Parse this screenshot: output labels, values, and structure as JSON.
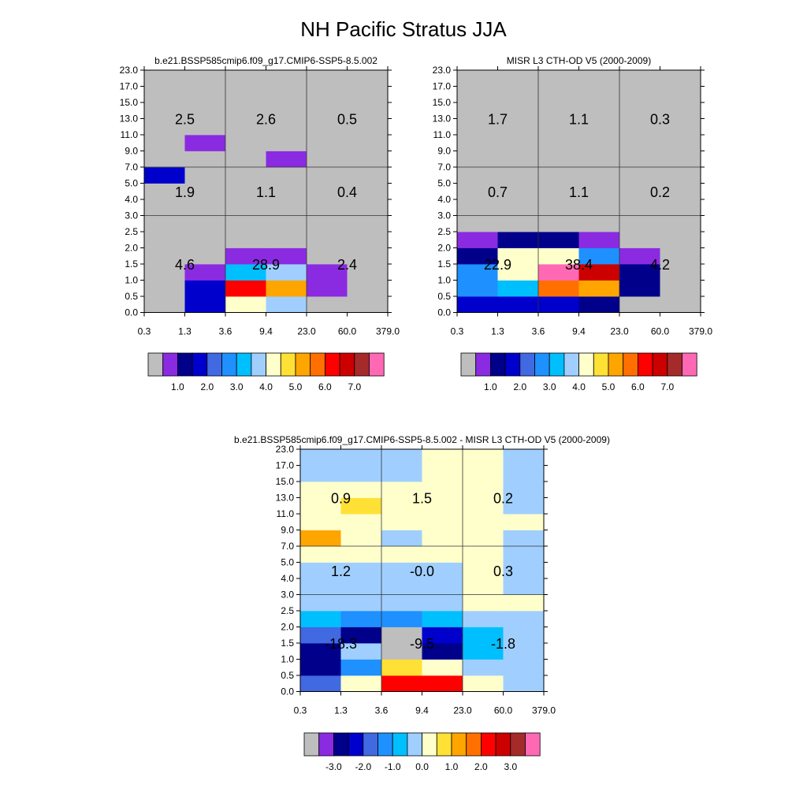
{
  "main_title": "NH Pacific Stratus JJA",
  "palette": {
    "missing": "#bebebe",
    "colors": [
      "#8a2be2",
      "#00008b",
      "#0000cd",
      "#4169e1",
      "#1e90ff",
      "#00bfff",
      "#a0cfff",
      "#ffffcc",
      "#ffe135",
      "#ffa500",
      "#ff7000",
      "#ff0000",
      "#cd0000",
      "#a52a2a",
      "#ff69b4"
    ],
    "note_values": "color index 0-14; -1 = gray (missing/zero)"
  },
  "chart_data": [
    {
      "type": "heatmap",
      "title": "b.e21.BSSP585cmip6.f09_g17.CMIP6-SSP5-8.5.002",
      "x_tick_labels": [
        "0.3",
        "1.3",
        "3.6",
        "9.4",
        "23.0",
        "60.0",
        "379.0"
      ],
      "y_tick_labels": [
        "0.0",
        "0.5",
        "1.0",
        "1.5",
        "2.0",
        "2.5",
        "3.0",
        "4.0",
        "5.0",
        "7.0",
        "9.0",
        "11.0",
        "13.0",
        "15.0",
        "17.0",
        "23.0"
      ],
      "cell_color_index": [
        [
          -1,
          2,
          7,
          6,
          -1,
          -1
        ],
        [
          -1,
          2,
          11,
          9,
          0,
          -1
        ],
        [
          -1,
          0,
          5,
          6,
          0,
          -1
        ],
        [
          -1,
          -1,
          0,
          0,
          -1,
          -1
        ],
        [
          -1,
          -1,
          -1,
          -1,
          -1,
          -1
        ],
        [
          -1,
          -1,
          -1,
          -1,
          -1,
          -1
        ],
        [
          -1,
          -1,
          -1,
          -1,
          -1,
          -1
        ],
        [
          -1,
          -1,
          -1,
          -1,
          -1,
          -1
        ],
        [
          2,
          -1,
          -1,
          -1,
          -1,
          -1
        ],
        [
          -1,
          -1,
          -1,
          0,
          -1,
          -1
        ],
        [
          -1,
          0,
          -1,
          -1,
          -1,
          -1
        ],
        [
          -1,
          -1,
          -1,
          -1,
          -1,
          -1
        ],
        [
          -1,
          -1,
          -1,
          -1,
          -1,
          -1
        ],
        [
          -1,
          -1,
          -1,
          -1,
          -1,
          -1
        ],
        [
          -1,
          -1,
          -1,
          -1,
          -1,
          -1
        ]
      ],
      "block_values": [
        {
          "xcenter": 1,
          "yband": "low",
          "label": "4.6"
        },
        {
          "xcenter": 3,
          "yband": "low",
          "label": "28.9"
        },
        {
          "xcenter": 5,
          "yband": "low",
          "label": "2.4"
        },
        {
          "xcenter": 1,
          "yband": "mid",
          "label": "1.9"
        },
        {
          "xcenter": 3,
          "yband": "mid",
          "label": "1.1"
        },
        {
          "xcenter": 5,
          "yband": "mid",
          "label": "0.4"
        },
        {
          "xcenter": 1,
          "yband": "high",
          "label": "2.5"
        },
        {
          "xcenter": 3,
          "yband": "high",
          "label": "2.6"
        },
        {
          "xcenter": 5,
          "yband": "high",
          "label": "0.5"
        }
      ],
      "colorbar_labels": [
        "1.0",
        "2.0",
        "3.0",
        "4.0",
        "5.0",
        "6.0",
        "7.0"
      ]
    },
    {
      "type": "heatmap",
      "title": "MISR L3 CTH-OD V5 (2000-2009)",
      "x_tick_labels": [
        "0.3",
        "1.3",
        "3.6",
        "9.4",
        "23.0",
        "60.0",
        "379.0"
      ],
      "y_tick_labels": [
        "0.0",
        "0.5",
        "1.0",
        "1.5",
        "2.0",
        "2.5",
        "3.0",
        "4.0",
        "5.0",
        "7.0",
        "9.0",
        "11.0",
        "13.0",
        "15.0",
        "17.0",
        "23.0"
      ],
      "cell_color_index": [
        [
          2,
          2,
          2,
          1,
          -1,
          -1
        ],
        [
          4,
          5,
          10,
          9,
          1,
          -1
        ],
        [
          4,
          7,
          14,
          12,
          1,
          -1
        ],
        [
          1,
          7,
          7,
          4,
          0,
          -1
        ],
        [
          0,
          1,
          1,
          0,
          -1,
          -1
        ],
        [
          -1,
          -1,
          -1,
          -1,
          -1,
          -1
        ],
        [
          -1,
          -1,
          -1,
          -1,
          -1,
          -1
        ],
        [
          -1,
          -1,
          -1,
          -1,
          -1,
          -1
        ],
        [
          -1,
          -1,
          -1,
          -1,
          -1,
          -1
        ],
        [
          -1,
          -1,
          -1,
          -1,
          -1,
          -1
        ],
        [
          -1,
          -1,
          -1,
          -1,
          -1,
          -1
        ],
        [
          -1,
          -1,
          -1,
          -1,
          -1,
          -1
        ],
        [
          -1,
          -1,
          -1,
          -1,
          -1,
          -1
        ],
        [
          -1,
          -1,
          -1,
          -1,
          -1,
          -1
        ],
        [
          -1,
          -1,
          -1,
          -1,
          -1,
          -1
        ]
      ],
      "block_values": [
        {
          "xcenter": 1,
          "yband": "low",
          "label": "22.9"
        },
        {
          "xcenter": 3,
          "yband": "low",
          "label": "38.4"
        },
        {
          "xcenter": 5,
          "yband": "low",
          "label": "4.2"
        },
        {
          "xcenter": 1,
          "yband": "mid",
          "label": "0.7"
        },
        {
          "xcenter": 3,
          "yband": "mid",
          "label": "1.1"
        },
        {
          "xcenter": 5,
          "yband": "mid",
          "label": "0.2"
        },
        {
          "xcenter": 1,
          "yband": "high",
          "label": "1.7"
        },
        {
          "xcenter": 3,
          "yband": "high",
          "label": "1.1"
        },
        {
          "xcenter": 5,
          "yband": "high",
          "label": "0.3"
        }
      ],
      "colorbar_labels": [
        "1.0",
        "2.0",
        "3.0",
        "4.0",
        "5.0",
        "6.0",
        "7.0"
      ]
    },
    {
      "type": "heatmap",
      "title": "b.e21.BSSP585cmip6.f09_g17.CMIP6-SSP5-8.5.002 - MISR L3 CTH-OD V5 (2000-2009)",
      "x_tick_labels": [
        "0.3",
        "1.3",
        "3.6",
        "9.4",
        "23.0",
        "60.0",
        "379.0"
      ],
      "y_tick_labels": [
        "0.0",
        "0.5",
        "1.0",
        "1.5",
        "2.0",
        "2.5",
        "3.0",
        "4.0",
        "5.0",
        "7.0",
        "9.0",
        "11.0",
        "13.0",
        "15.0",
        "17.0",
        "23.0"
      ],
      "cell_color_index": [
        [
          3,
          7,
          11,
          11,
          7,
          6
        ],
        [
          1,
          4,
          8,
          7,
          6,
          6
        ],
        [
          1,
          6,
          -1,
          1,
          5,
          6
        ],
        [
          3,
          1,
          -1,
          2,
          5,
          6
        ],
        [
          5,
          4,
          4,
          5,
          6,
          6
        ],
        [
          6,
          6,
          6,
          6,
          7,
          7
        ],
        [
          6,
          6,
          6,
          6,
          7,
          6
        ],
        [
          6,
          6,
          6,
          6,
          7,
          6
        ],
        [
          7,
          7,
          7,
          7,
          7,
          6
        ],
        [
          9,
          7,
          6,
          7,
          7,
          6
        ],
        [
          7,
          7,
          7,
          7,
          7,
          7
        ],
        [
          7,
          8,
          7,
          7,
          7,
          6
        ],
        [
          7,
          7,
          7,
          7,
          7,
          6
        ],
        [
          6,
          6,
          6,
          7,
          7,
          6
        ],
        [
          6,
          6,
          6,
          7,
          7,
          6
        ]
      ],
      "block_values": [
        {
          "xcenter": 1,
          "yband": "low",
          "label": "-18.3"
        },
        {
          "xcenter": 3,
          "yband": "low",
          "label": "-9.5"
        },
        {
          "xcenter": 5,
          "yband": "low",
          "label": "-1.8"
        },
        {
          "xcenter": 1,
          "yband": "mid",
          "label": "1.2"
        },
        {
          "xcenter": 3,
          "yband": "mid",
          "label": "-0.0"
        },
        {
          "xcenter": 5,
          "yband": "mid",
          "label": "0.3"
        },
        {
          "xcenter": 1,
          "yband": "high",
          "label": "0.9"
        },
        {
          "xcenter": 3,
          "yband": "high",
          "label": "1.5"
        },
        {
          "xcenter": 5,
          "yband": "high",
          "label": "0.2"
        }
      ],
      "colorbar_labels": [
        "-3.0",
        "-2.0",
        "-1.0",
        "0.0",
        "1.0",
        "2.0",
        "3.0"
      ]
    }
  ]
}
